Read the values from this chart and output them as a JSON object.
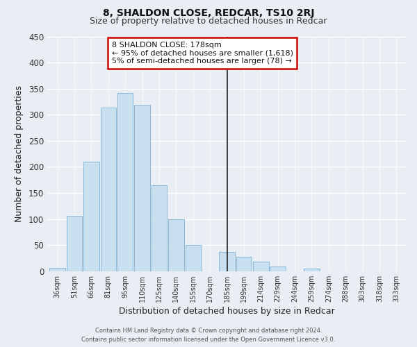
{
  "title": "8, SHALDON CLOSE, REDCAR, TS10 2RJ",
  "subtitle": "Size of property relative to detached houses in Redcar",
  "xlabel": "Distribution of detached houses by size in Redcar",
  "ylabel": "Number of detached properties",
  "footer_line1": "Contains HM Land Registry data © Crown copyright and database right 2024.",
  "footer_line2": "Contains public sector information licensed under the Open Government Licence v3.0.",
  "categories": [
    "36sqm",
    "51sqm",
    "66sqm",
    "81sqm",
    "95sqm",
    "110sqm",
    "125sqm",
    "140sqm",
    "155sqm",
    "170sqm",
    "185sqm",
    "199sqm",
    "214sqm",
    "229sqm",
    "244sqm",
    "259sqm",
    "274sqm",
    "288sqm",
    "303sqm",
    "318sqm",
    "333sqm"
  ],
  "values": [
    7,
    106,
    210,
    314,
    342,
    319,
    165,
    99,
    50,
    0,
    37,
    28,
    18,
    9,
    0,
    5,
    0,
    0,
    0,
    0,
    0
  ],
  "bar_color": "#c8dff0",
  "bar_edge_color": "#8ab8d8",
  "vline_color": "#222222",
  "annotation_title": "8 SHALDON CLOSE: 178sqm",
  "annotation_line1": "← 95% of detached houses are smaller (1,618)",
  "annotation_line2": "5% of semi-detached houses are larger (78) →",
  "annotation_box_facecolor": "#ffffff",
  "annotation_border_color": "#cc0000",
  "yticks": [
    0,
    50,
    100,
    150,
    200,
    250,
    300,
    350,
    400,
    450
  ],
  "ylim": [
    0,
    450
  ],
  "background_color": "#e8eef4",
  "grid_color": "#ffffff",
  "title_fontsize": 10,
  "subtitle_fontsize": 9
}
